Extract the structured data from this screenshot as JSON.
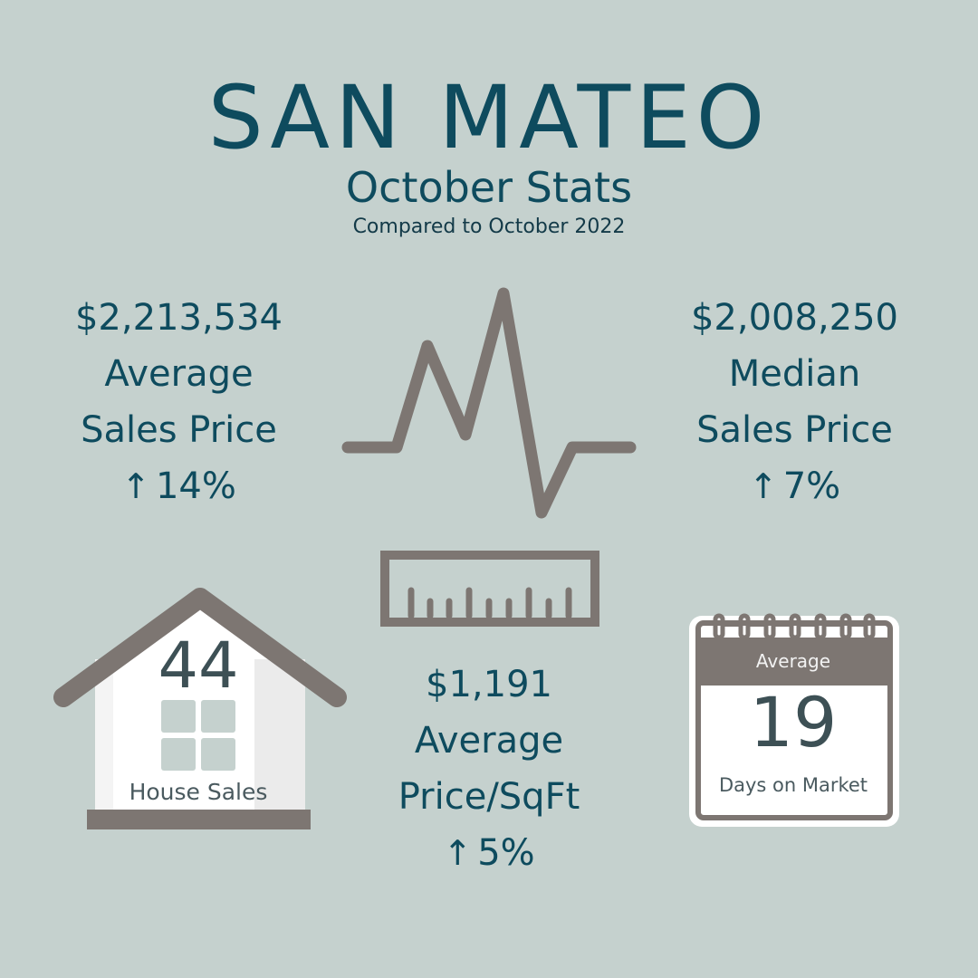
{
  "header": {
    "title": "SAN MATEO",
    "subtitle": "October Stats",
    "comparison": "Compared to October 2022"
  },
  "stats": {
    "average_sales_price": {
      "value": "$2,213,534",
      "label_line1": "Average",
      "label_line2": "Sales Price",
      "arrow": "↑",
      "change": "14%"
    },
    "median_sales_price": {
      "value": "$2,008,250",
      "label_line1": "Median",
      "label_line2": "Sales Price",
      "arrow": "↑",
      "change": "7%"
    },
    "average_price_sqft": {
      "value": "$1,191",
      "label_line1": "Average",
      "label_line2": "Price/SqFt",
      "arrow": "↑",
      "change": "5%"
    },
    "house_sales": {
      "value": "44",
      "label": "House Sales"
    },
    "days_on_market": {
      "top_label": "Average",
      "value": "19",
      "label": "Days on Market"
    }
  },
  "icons": {
    "pulse": "pulse-line-icon",
    "ruler": "ruler-icon",
    "house": "house-icon",
    "calendar": "calendar-icon"
  },
  "colors": {
    "background": "#c5d1ce",
    "text": "#0e4b5e",
    "icon": "#7d7672"
  }
}
